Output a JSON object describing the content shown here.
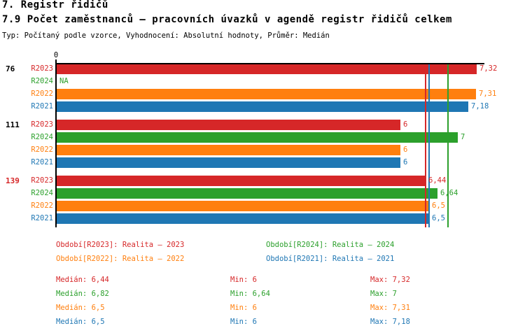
{
  "header": {
    "chapter": "7. Registr řidičů",
    "title": "7.9 Počet zaměstnanců – pracovních úvazků v agendě registr řidičů celkem",
    "meta": "Typ: Počítaný podle vzorce, Vyhodnocení: Absolutní hodnoty, Průměr: Medián"
  },
  "chart_data": {
    "type": "bar",
    "orientation": "horizontal",
    "title": "7.9 Počet zaměstnanců – pracovních úvazků v agendě registr řidičů celkem",
    "x_axis": {
      "origin_label": "0",
      "min": 0,
      "max_shown": 7.46,
      "grid": false
    },
    "series": [
      {
        "name": "R2023",
        "color": "#d62728",
        "legend": "Období[R2023]: Realita – 2023",
        "median": 6.44,
        "min": 6,
        "max": 7.32
      },
      {
        "name": "R2024",
        "color": "#2ca02c",
        "legend": "Období[R2024]: Realita – 2024",
        "median": 6.82,
        "min": 6.64,
        "max": 7
      },
      {
        "name": "R2022",
        "color": "#ff7f0e",
        "legend": "Období[R2022]: Realita – 2022",
        "median": 6.5,
        "min": 6,
        "max": 7.31
      },
      {
        "name": "R2021",
        "color": "#1f77b4",
        "legend": "Období[R2021]: Realita – 2021",
        "median": 6.5,
        "min": 6,
        "max": 7.18
      }
    ],
    "groups": [
      {
        "label": "76",
        "label_color": "#000000",
        "values": [
          7.32,
          null,
          7.31,
          7.18
        ],
        "display": [
          "7,32",
          "NA",
          "7,31",
          "7,18"
        ]
      },
      {
        "label": "111",
        "label_color": "#000000",
        "values": [
          6,
          7,
          6,
          6
        ],
        "display": [
          "6",
          "7",
          "6",
          "6"
        ]
      },
      {
        "label": "139",
        "label_color": "#d62728",
        "values": [
          6.44,
          6.64,
          6.5,
          6.5
        ],
        "display": [
          "6,44",
          "6,64",
          "6,5",
          "6,5"
        ]
      }
    ],
    "median_lines": [
      {
        "series": "R2022",
        "value": 6.5,
        "color": "#ff7f0e"
      },
      {
        "series": "R2021",
        "value": 6.5,
        "color": "#1f77b4"
      },
      {
        "series": "R2023",
        "value": 6.44,
        "color": "#d62728"
      },
      {
        "series": "R2024",
        "value": 6.82,
        "color": "#2ca02c"
      }
    ]
  },
  "legend": {
    "items": [
      {
        "label": "Období[R2023]: Realita – 2023",
        "color": "#d62728",
        "col": 0,
        "row": 0
      },
      {
        "label": "Období[R2024]: Realita – 2024",
        "color": "#2ca02c",
        "col": 1,
        "row": 0
      },
      {
        "label": "Období[R2022]: Realita – 2022",
        "color": "#ff7f0e",
        "col": 0,
        "row": 1
      },
      {
        "label": "Období[R2021]: Realita – 2021",
        "color": "#1f77b4",
        "col": 1,
        "row": 1
      }
    ]
  },
  "stats": {
    "rows": [
      {
        "series": "R2023",
        "color": "#d62728",
        "median": "Medián: 6,44",
        "min": "Min: 6",
        "max": "Max: 7,32"
      },
      {
        "series": "R2024",
        "color": "#2ca02c",
        "median": "Medián: 6,82",
        "min": "Min: 6,64",
        "max": "Max: 7"
      },
      {
        "series": "R2022",
        "color": "#ff7f0e",
        "median": "Medián: 6,5",
        "min": "Min: 6",
        "max": "Max: 7,31"
      },
      {
        "series": "R2021",
        "color": "#1f77b4",
        "median": "Medián: 6,5",
        "min": "Min: 6",
        "max": "Max: 7,18"
      }
    ]
  }
}
